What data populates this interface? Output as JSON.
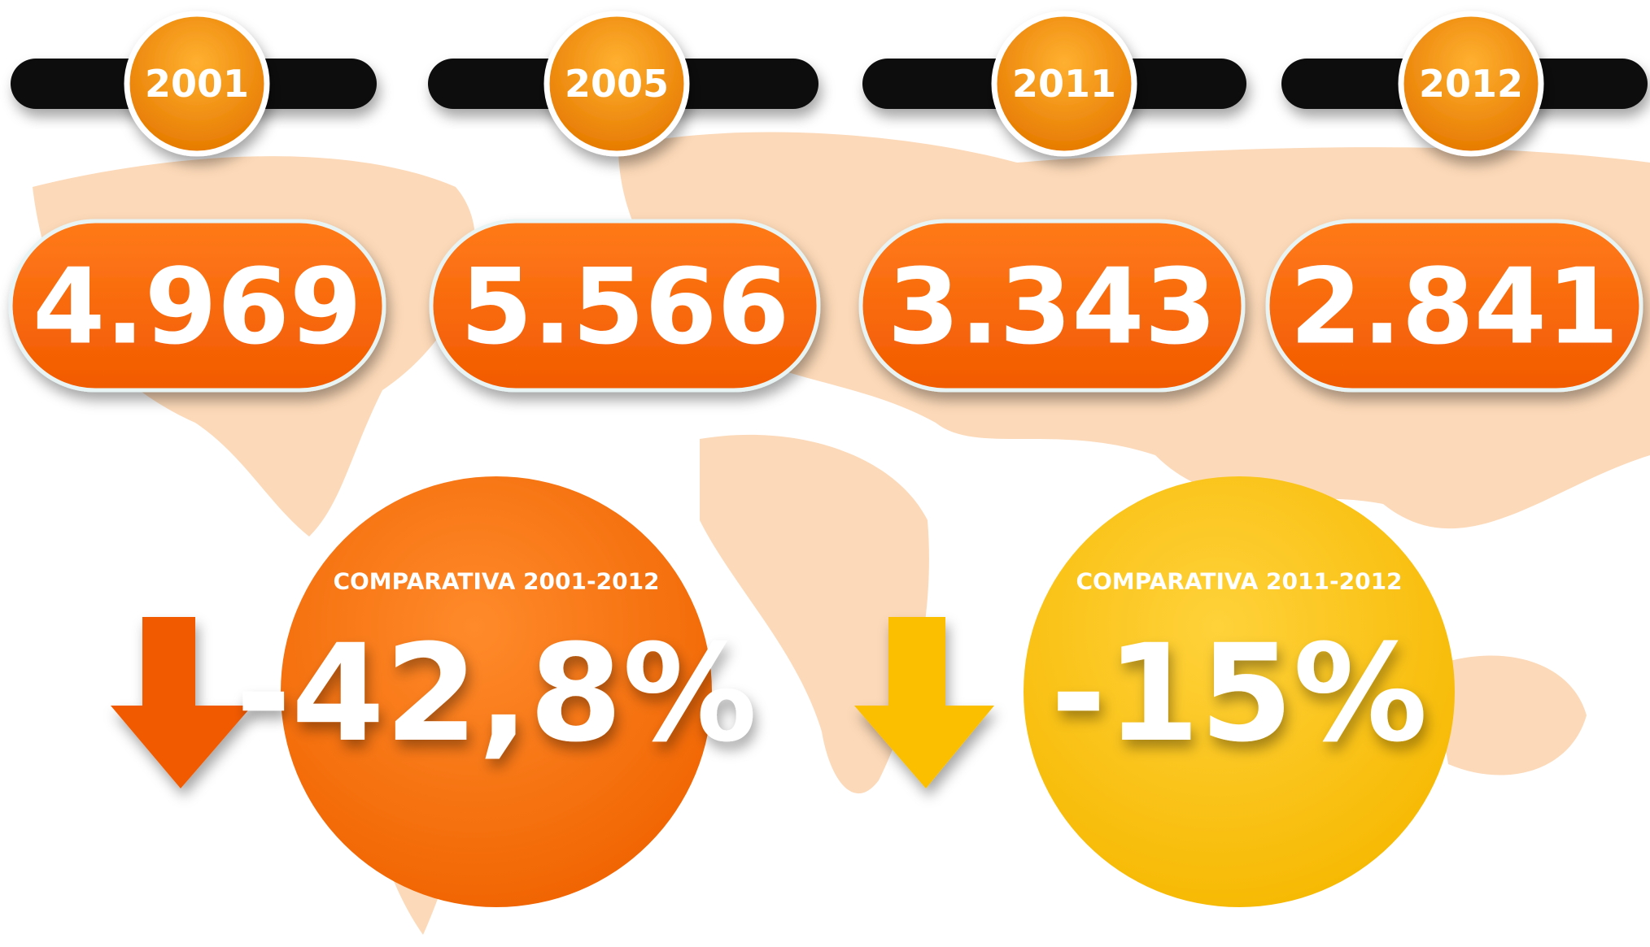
{
  "periods": [
    {
      "year": "2001",
      "value": "4.969"
    },
    {
      "year": "2005",
      "value": "5.566"
    },
    {
      "year": "2011",
      "value": "3.343"
    },
    {
      "year": "2012",
      "value": "2.841"
    }
  ],
  "comparisons": [
    {
      "label": "COMPARATIVA 2001-2012",
      "value": "-42,8%"
    },
    {
      "label": "COMPARATIVA 2011-2012",
      "value": "-15%"
    }
  ]
}
